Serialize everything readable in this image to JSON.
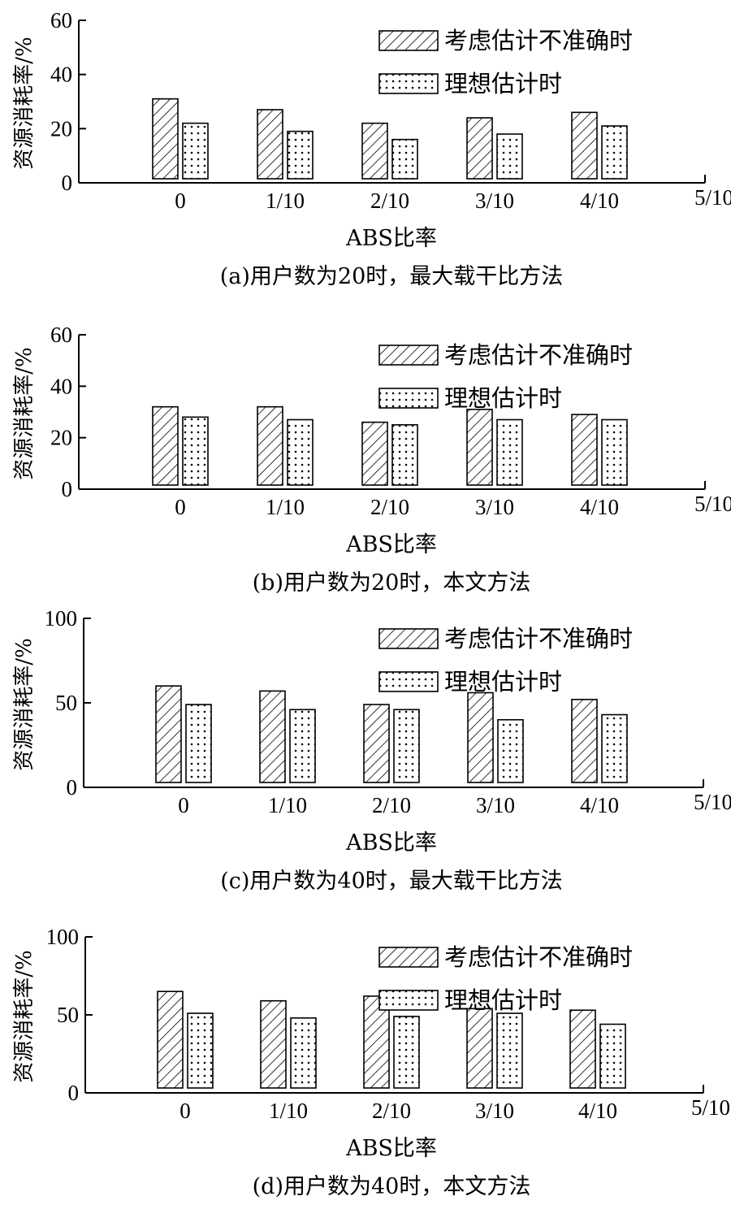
{
  "chart_data": [
    {
      "type": "bar",
      "categories": [
        "0",
        "1/10",
        "2/10",
        "3/10",
        "4/10",
        "5/10"
      ],
      "series": [
        {
          "name": "考虑估计不准确时",
          "values": [
            31,
            27,
            22,
            24,
            26,
            null
          ],
          "pattern": "hatch"
        },
        {
          "name": "理想估计时",
          "values": [
            22,
            19,
            16,
            18,
            21,
            null
          ],
          "pattern": "dots"
        }
      ],
      "yticks": [
        "0",
        "20",
        "40",
        "60"
      ],
      "ylim": [
        0,
        60
      ],
      "xlabel": "ABS比率",
      "ylabel": "资源消耗率/%",
      "caption": "(a)用户数为20时，最大载干比方法",
      "legend": "top-right",
      "grid": false
    },
    {
      "type": "bar",
      "categories": [
        "0",
        "1/10",
        "2/10",
        "3/10",
        "4/10",
        "5/10"
      ],
      "series": [
        {
          "name": "考虑估计不准确时",
          "values": [
            32,
            32,
            26,
            31,
            29,
            null
          ],
          "pattern": "hatch"
        },
        {
          "name": "理想估计时",
          "values": [
            28,
            27,
            25,
            27,
            27,
            null
          ],
          "pattern": "dots"
        }
      ],
      "yticks": [
        "0",
        "20",
        "40",
        "60"
      ],
      "ylim": [
        0,
        60
      ],
      "xlabel": "ABS比率",
      "ylabel": "资源消耗率/%",
      "caption": "(b)用户数为20时，本文方法",
      "legend": "top-right",
      "grid": false
    },
    {
      "type": "bar",
      "categories": [
        "0",
        "1/10",
        "2/10",
        "3/10",
        "4/10",
        "5/10"
      ],
      "series": [
        {
          "name": "考虑估计不准确时",
          "values": [
            60,
            57,
            49,
            56,
            52,
            null
          ],
          "pattern": "hatch"
        },
        {
          "name": "理想估计时",
          "values": [
            49,
            46,
            46,
            40,
            43,
            null
          ],
          "pattern": "dots"
        }
      ],
      "yticks": [
        "0",
        "50",
        "100"
      ],
      "ylim": [
        0,
        100
      ],
      "xlabel": "ABS比率",
      "ylabel": "资源消耗率/%",
      "caption": "(c)用户数为40时，最大载干比方法",
      "legend": "top-right",
      "grid": false
    },
    {
      "type": "bar",
      "categories": [
        "0",
        "1/10",
        "2/10",
        "3/10",
        "4/10",
        "5/10"
      ],
      "series": [
        {
          "name": "考虑估计不准确时",
          "values": [
            65,
            59,
            62,
            54,
            53,
            null
          ],
          "pattern": "hatch"
        },
        {
          "name": "理想估计时",
          "values": [
            51,
            48,
            49,
            51,
            44,
            null
          ],
          "pattern": "dots"
        }
      ],
      "yticks": [
        "0",
        "50",
        "100"
      ],
      "ylim": [
        0,
        100
      ],
      "xlabel": "ABS比率",
      "ylabel": "资源消耗率/%",
      "caption": "(d)用户数为40时，本文方法",
      "legend": "top-right",
      "grid": false
    }
  ]
}
